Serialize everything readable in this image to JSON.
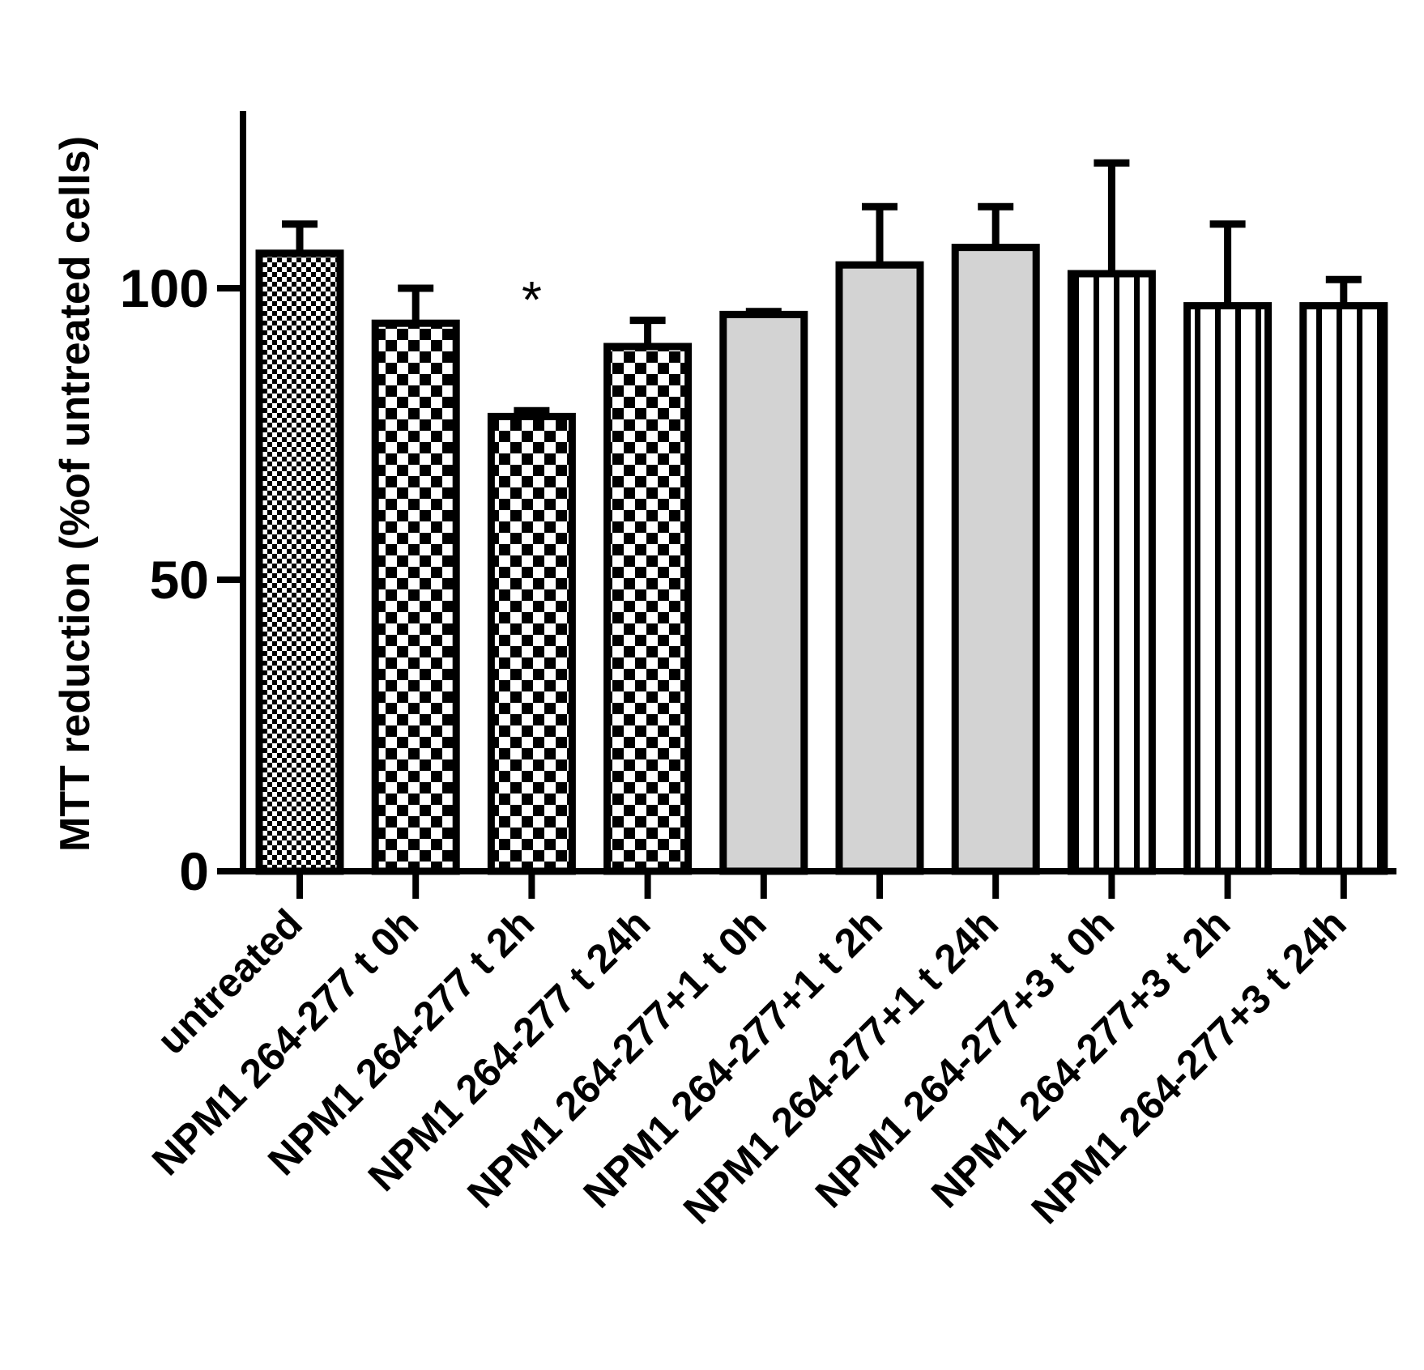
{
  "chart_data": {
    "type": "bar",
    "title": "",
    "xlabel": "",
    "ylabel": "MTT reduction (%of untreated cells)",
    "ylim": [
      0,
      130
    ],
    "yticks": [
      0,
      50,
      100
    ],
    "ytick_labels": [
      "0",
      "50",
      "100"
    ],
    "grid": false,
    "legend": "none",
    "categories": [
      "untreated",
      "NPM1 264-277 t 0h",
      "NPM1 264-277 t 2h",
      "NPM1 264-277 t 24h",
      "NPM1 264-277+1 t 0h",
      "NPM1 264-277+1 t 2h",
      "NPM1 264-277+1 t 24h",
      "NPM1 264-277+3 t 0h",
      "NPM1 264-277+3 t 2h",
      "NPM1 264-277+3 t 24h"
    ],
    "values": [
      106,
      94,
      78,
      90,
      95.5,
      104,
      107,
      102.5,
      97,
      97
    ],
    "errors": [
      5,
      6,
      1,
      4.5,
      0.5,
      10,
      7,
      19,
      14,
      4.5
    ],
    "patterns": [
      "fine-check",
      "check",
      "check",
      "check",
      "gray",
      "gray",
      "gray",
      "stripes",
      "stripes",
      "stripes"
    ],
    "annotations": [
      {
        "category_index": 2,
        "text": "*"
      }
    ],
    "colors": {
      "stroke": "#000000",
      "gray_fill": "#d3d3d3",
      "background": "#ffffff"
    }
  }
}
